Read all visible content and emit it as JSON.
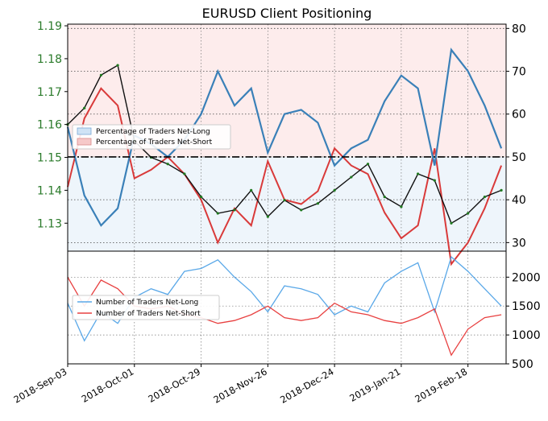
{
  "chart_data": [
    {
      "type": "line",
      "title": "EURUSD Client Positioning",
      "left_axis": {
        "ylim": [
          1.1215,
          1.1905
        ],
        "ticks": [
          "1.13",
          "1.14",
          "1.15",
          "1.16",
          "1.17",
          "1.18",
          "1.19"
        ],
        "tick_values": [
          1.13,
          1.14,
          1.15,
          1.16,
          1.17,
          1.18,
          1.19
        ],
        "color": "#2a7a2a"
      },
      "right_axis": {
        "ylim": [
          28,
          81
        ],
        "ticks": [
          "30",
          "40",
          "50",
          "60",
          "70",
          "80"
        ],
        "tick_values": [
          30,
          40,
          50,
          60,
          70,
          80
        ]
      },
      "x_axis": {
        "xlim": [
          "2018-09-03",
          "2019-03-06"
        ],
        "ticks": [
          "2018-Sep-03",
          "2018-Oct-01",
          "2018-Oct-29",
          "2018-Nov-26",
          "2018-Dec-24",
          "2019-Jan-21",
          "2019-Feb-18"
        ],
        "tick_dates": [
          "2018-09-03",
          "2018-10-01",
          "2018-10-29",
          "2018-11-26",
          "2018-12-24",
          "2019-01-21",
          "2019-02-18"
        ]
      },
      "reference_line": {
        "value": 50,
        "style": "dash-dot"
      },
      "legend": {
        "placement": "upper-left",
        "entries": [
          "Percentage of Traders Net-Long",
          "Percentage of Traders Net-Short"
        ]
      },
      "series": [
        {
          "name": "Percentage of Traders Net-Long",
          "color": "#3a80b8",
          "dates": [
            "2018-09-03",
            "2018-09-10",
            "2018-09-17",
            "2018-09-24",
            "2018-10-01",
            "2018-10-08",
            "2018-10-15",
            "2018-10-22",
            "2018-10-29",
            "2018-11-05",
            "2018-11-12",
            "2018-11-19",
            "2018-11-26",
            "2018-12-03",
            "2018-12-10",
            "2018-12-17",
            "2018-12-24",
            "2018-12-31",
            "2019-01-07",
            "2019-01-14",
            "2019-01-21",
            "2019-01-28",
            "2019-02-04",
            "2019-02-11",
            "2019-02-18",
            "2019-02-25",
            "2019-03-04"
          ],
          "values": [
            57,
            41,
            34,
            38,
            55,
            53,
            50,
            54,
            60,
            70,
            62,
            66,
            51,
            60,
            61,
            58,
            48,
            52,
            54,
            63,
            69,
            66,
            48,
            75,
            70,
            62,
            52
          ]
        },
        {
          "name": "Percentage of Traders Net-Short",
          "color": "#d93a3a",
          "dates": [
            "2018-09-03",
            "2018-09-10",
            "2018-09-17",
            "2018-09-24",
            "2018-10-01",
            "2018-10-08",
            "2018-10-15",
            "2018-10-22",
            "2018-10-29",
            "2018-11-05",
            "2018-11-12",
            "2018-11-19",
            "2018-11-26",
            "2018-12-03",
            "2018-12-10",
            "2018-12-17",
            "2018-12-24",
            "2018-12-31",
            "2019-01-07",
            "2019-01-14",
            "2019-01-21",
            "2019-01-28",
            "2019-02-04",
            "2019-02-11",
            "2019-02-18",
            "2019-02-25",
            "2019-03-04"
          ],
          "values": [
            43,
            59,
            66,
            62,
            45,
            47,
            50,
            46,
            40,
            30,
            38,
            34,
            49,
            40,
            39,
            42,
            52,
            48,
            46,
            37,
            31,
            34,
            52,
            25,
            30,
            38,
            48
          ]
        },
        {
          "name": "EURUSD",
          "color": "#111111",
          "dates": [
            "2018-09-03",
            "2018-09-10",
            "2018-09-17",
            "2018-09-24",
            "2018-10-01",
            "2018-10-08",
            "2018-10-15",
            "2018-10-22",
            "2018-10-29",
            "2018-11-05",
            "2018-11-12",
            "2018-11-19",
            "2018-11-26",
            "2018-12-03",
            "2018-12-10",
            "2018-12-17",
            "2018-12-24",
            "2018-12-31",
            "2019-01-07",
            "2019-01-14",
            "2019-01-21",
            "2019-01-28",
            "2019-02-04",
            "2019-02-11",
            "2019-02-18",
            "2019-02-25",
            "2019-03-04"
          ],
          "values": [
            1.16,
            1.165,
            1.175,
            1.178,
            1.155,
            1.15,
            1.148,
            1.145,
            1.138,
            1.133,
            1.134,
            1.14,
            1.132,
            1.137,
            1.134,
            1.136,
            1.14,
            1.144,
            1.148,
            1.138,
            1.135,
            1.145,
            1.143,
            1.13,
            1.133,
            1.138,
            1.14
          ]
        }
      ]
    },
    {
      "type": "line",
      "right_axis": {
        "ylim": [
          500,
          2450
        ],
        "ticks": [
          "500",
          "1000",
          "1500",
          "2000"
        ],
        "tick_values": [
          500,
          1000,
          1500,
          2000
        ]
      },
      "legend": {
        "placement": "upper-left",
        "entries": [
          "Number of Traders Net-Long",
          "Number of Traders Net-Short"
        ]
      },
      "series": [
        {
          "name": "Number of Traders Net-Long",
          "color": "#5aa8e8",
          "dates": [
            "2018-09-03",
            "2018-09-10",
            "2018-09-17",
            "2018-09-24",
            "2018-10-01",
            "2018-10-08",
            "2018-10-15",
            "2018-10-22",
            "2018-10-29",
            "2018-11-05",
            "2018-11-12",
            "2018-11-19",
            "2018-11-26",
            "2018-12-03",
            "2018-12-10",
            "2018-12-17",
            "2018-12-24",
            "2018-12-31",
            "2019-01-07",
            "2019-01-14",
            "2019-01-21",
            "2019-01-28",
            "2019-02-04",
            "2019-02-11",
            "2019-02-18",
            "2019-02-25",
            "2019-03-04"
          ],
          "values": [
            1550,
            900,
            1400,
            1200,
            1650,
            1800,
            1700,
            2100,
            2150,
            2300,
            2000,
            1750,
            1400,
            1850,
            1800,
            1700,
            1350,
            1500,
            1400,
            1900,
            2100,
            2250,
            1400,
            2350,
            2100,
            1800,
            1500
          ]
        },
        {
          "name": "Number of Traders Net-Short",
          "color": "#e84040",
          "dates": [
            "2018-09-03",
            "2018-09-10",
            "2018-09-17",
            "2018-09-24",
            "2018-10-01",
            "2018-10-08",
            "2018-10-15",
            "2018-10-22",
            "2018-10-29",
            "2018-11-05",
            "2018-11-12",
            "2018-11-19",
            "2018-11-26",
            "2018-12-03",
            "2018-12-10",
            "2018-12-17",
            "2018-12-24",
            "2018-12-31",
            "2019-01-07",
            "2019-01-14",
            "2019-01-21",
            "2019-01-28",
            "2019-02-04",
            "2019-02-11",
            "2019-02-18",
            "2019-02-25",
            "2019-03-04"
          ],
          "values": [
            2000,
            1500,
            1950,
            1800,
            1500,
            1450,
            1500,
            1350,
            1300,
            1200,
            1250,
            1350,
            1500,
            1300,
            1250,
            1300,
            1550,
            1400,
            1350,
            1250,
            1200,
            1300,
            1450,
            650,
            1100,
            1300,
            1350
          ]
        }
      ]
    }
  ]
}
